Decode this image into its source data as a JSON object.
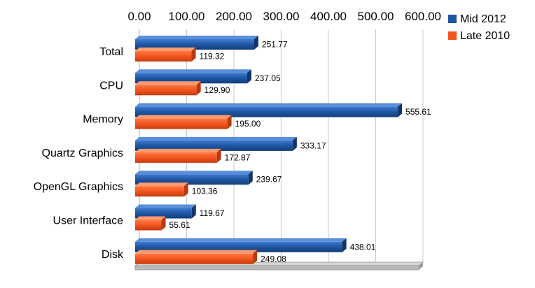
{
  "chart_data": {
    "type": "bar",
    "orientation": "horizontal",
    "categories": [
      "Total",
      "CPU",
      "Memory",
      "Quartz Graphics",
      "OpenGL Graphics",
      "User Interface",
      "Disk"
    ],
    "series": [
      {
        "name": "Mid 2012",
        "color": "#1f56a3",
        "values": [
          251.77,
          237.05,
          555.61,
          333.17,
          239.67,
          119.67,
          438.01
        ]
      },
      {
        "name": "Late 2010",
        "color": "#f2541e",
        "values": [
          119.32,
          129.9,
          195.0,
          172.87,
          103.36,
          55.61,
          249.08
        ]
      }
    ],
    "x_ticks": [
      "0.00",
      "100.00",
      "200.00",
      "300.00",
      "400.00",
      "500.00",
      "600.00"
    ],
    "xlim": [
      0,
      600
    ],
    "x_axis_position": "top",
    "grid": true,
    "legend_position": "top-right",
    "style": "3d"
  }
}
